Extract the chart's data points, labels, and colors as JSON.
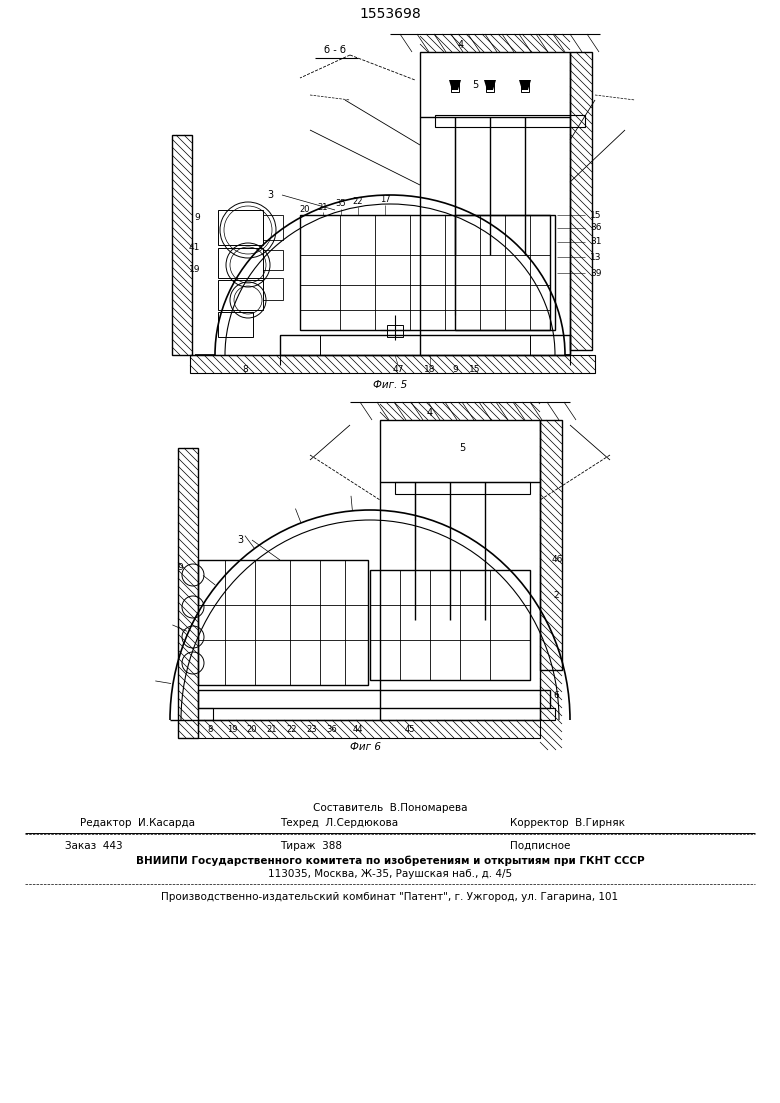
{
  "patent_number": "1553698",
  "bg_color": "#ffffff",
  "fig_width": 7.8,
  "fig_height": 11.03,
  "dpi": 100,
  "footer": {
    "sestavitel_label": "Составитель  В.Пономарева",
    "redaktor_label": "Редактор  И.Касарда",
    "tehred_label": "Техред  Л.Сердюкова",
    "korrektor_label": "Корректор  В.Гирняк",
    "zakaz": "Заказ  443",
    "tirazh": "Тираж  388",
    "podpisnoe": "Подписное",
    "vniiipi_line1": "ВНИИПИ Государственного комитета по изобретениям и открытиям при ГКНТ СССР",
    "vniiipi_line2": "113035, Москва, Ж-35, Раушская наб., д. 4/5",
    "proizv": "Производственно-издательский комбинат \"Патент\", г. Ужгород, ул. Гагарина, 101"
  },
  "fig5_label": "Фиг. 5",
  "fig6_label": "Фиг 6",
  "fig5_section": "б - б"
}
